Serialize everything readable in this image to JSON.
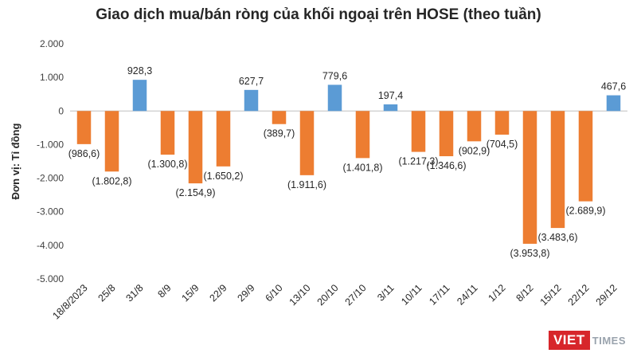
{
  "chart_data": {
    "type": "bar",
    "title": "Giao dịch mua/bán ròng của khối ngoại trên HOSE (theo tuần)",
    "xlabel": "",
    "ylabel": "Đơn vị: Tỉ đồng",
    "ylim": [
      -5000,
      2000
    ],
    "yticks": [
      2000,
      1000,
      0,
      -1000,
      -2000,
      -3000,
      -4000,
      -5000
    ],
    "ytick_labels": [
      "2.000",
      "1.000",
      "0",
      "-1.000",
      "-2.000",
      "-3.000",
      "-4.000",
      "-5.000"
    ],
    "categories": [
      "18/8/2023",
      "25/8",
      "31/8",
      "8/9",
      "15/9",
      "22/9",
      "29/9",
      "6/10",
      "13/10",
      "20/10",
      "27/10",
      "3/11",
      "10/11",
      "17/11",
      "24/11",
      "1/12",
      "8/12",
      "15/12",
      "22/12",
      "29/12"
    ],
    "values": [
      -986.6,
      -1802.8,
      928.3,
      -1300.8,
      -2154.9,
      -1650.2,
      627.7,
      -389.7,
      -1911.6,
      779.6,
      -1401.8,
      197.4,
      -1217.3,
      -1346.6,
      -902.9,
      -704.5,
      -3953.8,
      -3483.6,
      -2689.9,
      467.6
    ],
    "value_labels": [
      "(986,6)",
      "(1.802,8)",
      "928,3",
      "(1.300,8)",
      "(2.154,9)",
      "(1.650,2)",
      "627,7",
      "(389,7)",
      "(1.911,6)",
      "779,6",
      "(1.401,8)",
      "197,4",
      "(1.217,3)",
      "(1.346,6)",
      "(902,9)",
      "(704,5)",
      "(3.953,8)",
      "(3.483,6)",
      "(2.689,9)",
      "467,6"
    ],
    "colors": {
      "positive": "#5b9bd5",
      "negative": "#ed7d31"
    },
    "grid": false,
    "legend": "none"
  },
  "watermark": {
    "part1": "VIET",
    "part2": "TIMES"
  }
}
